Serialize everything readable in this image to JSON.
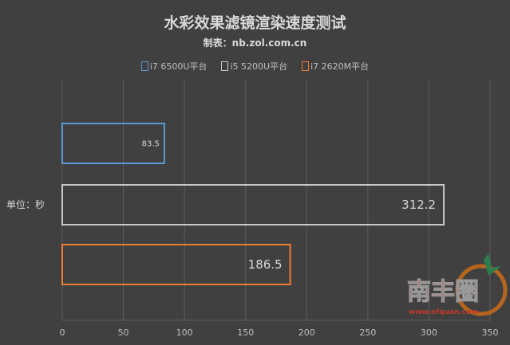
{
  "chart_data": {
    "type": "bar",
    "orientation": "horizontal",
    "title": "水彩效果滤镜渲染速度测试",
    "subtitle": "制表：nb.zol.com.cn",
    "ylabel": "单位：秒",
    "xlim": [
      0,
      350
    ],
    "xticks": [
      0,
      50,
      100,
      150,
      200,
      250,
      300,
      350
    ],
    "grid": true,
    "legend_placement": "top",
    "series": [
      {
        "name": "i7 6500U平台",
        "value": 83.5,
        "color": "#5b9bd5"
      },
      {
        "name": "i5 5200U平台",
        "value": 312.2,
        "color": "#c9c9c9"
      },
      {
        "name": "i7 2620M平台",
        "value": 186.5,
        "color": "#ed7d31"
      }
    ]
  },
  "watermark": {
    "text": "南丰圈",
    "url_text": "www.nfquan.com"
  }
}
